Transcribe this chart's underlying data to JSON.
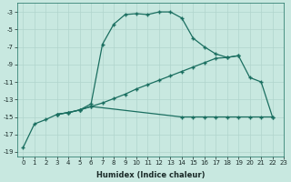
{
  "xlabel": "Humidex (Indice chaleur)",
  "bg_color": "#c8e8e0",
  "grid_color": "#b0d4cc",
  "line_color": "#1a6e60",
  "xlim": [
    -0.5,
    23
  ],
  "ylim": [
    -19.5,
    -2.0
  ],
  "xticks": [
    0,
    1,
    2,
    3,
    4,
    5,
    6,
    7,
    8,
    9,
    10,
    11,
    12,
    13,
    14,
    15,
    16,
    17,
    18,
    19,
    20,
    21,
    22,
    23
  ],
  "yticks": [
    -19,
    -17,
    -15,
    -13,
    -11,
    -9,
    -7,
    -5,
    -3
  ],
  "curve_x": [
    0,
    1,
    2,
    3,
    4,
    5,
    6,
    7,
    8,
    9,
    10,
    11,
    12,
    13,
    14,
    15,
    16,
    17,
    18,
    19,
    20,
    21,
    22
  ],
  "curve_y": [
    -18.5,
    -15.8,
    -15.3,
    -14.7,
    -14.5,
    -14.2,
    -13.5,
    -6.7,
    -4.4,
    -3.3,
    -3.2,
    -3.3,
    -3.0,
    -3.0,
    -3.7,
    -6.0,
    -7.0,
    -7.8,
    -8.2,
    -8.0,
    -10.5,
    -11.0,
    -15.0
  ],
  "diag_x": [
    3,
    4,
    5,
    6,
    7,
    8,
    9,
    10,
    11,
    12,
    13,
    14,
    15,
    16,
    17,
    18,
    19
  ],
  "diag_y": [
    -14.7,
    -14.5,
    -14.2,
    -13.8,
    -13.4,
    -12.9,
    -12.4,
    -11.8,
    -11.3,
    -10.8,
    -10.3,
    -9.8,
    -9.3,
    -8.8,
    -8.3,
    -8.2,
    -8.0
  ],
  "flat_x": [
    3,
    4,
    5,
    6,
    14,
    15,
    16,
    17,
    18,
    19,
    20,
    21,
    22
  ],
  "flat_y": [
    -14.7,
    -14.5,
    -14.2,
    -13.8,
    -15.0,
    -15.0,
    -15.0,
    -15.0,
    -15.0,
    -15.0,
    -15.0,
    -15.0,
    -15.0
  ],
  "marker": "+",
  "markersize": 3.5,
  "linewidth": 0.9,
  "tick_fontsize": 5,
  "xlabel_fontsize": 6,
  "xlabel_fontweight": "bold"
}
